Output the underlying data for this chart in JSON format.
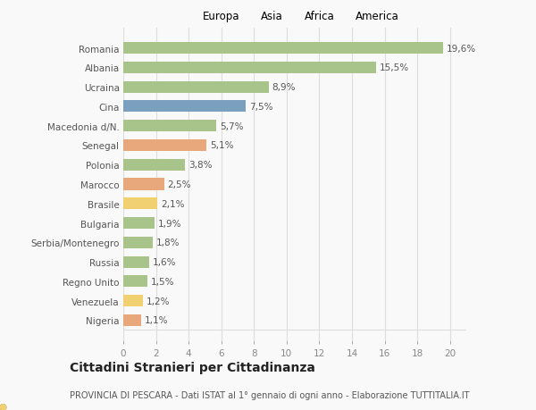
{
  "categories": [
    "Nigeria",
    "Venezuela",
    "Regno Unito",
    "Russia",
    "Serbia/Montenegro",
    "Bulgaria",
    "Brasile",
    "Marocco",
    "Polonia",
    "Senegal",
    "Macedonia d/N.",
    "Cina",
    "Ucraina",
    "Albania",
    "Romania"
  ],
  "values": [
    1.1,
    1.2,
    1.5,
    1.6,
    1.8,
    1.9,
    2.1,
    2.5,
    3.8,
    5.1,
    5.7,
    7.5,
    8.9,
    15.5,
    19.6
  ],
  "labels": [
    "1,1%",
    "1,2%",
    "1,5%",
    "1,6%",
    "1,8%",
    "1,9%",
    "2,1%",
    "2,5%",
    "3,8%",
    "5,1%",
    "5,7%",
    "7,5%",
    "8,9%",
    "15,5%",
    "19,6%"
  ],
  "continents": [
    "Africa",
    "America",
    "Europa",
    "Europa",
    "Europa",
    "Europa",
    "America",
    "Africa",
    "Europa",
    "Africa",
    "Europa",
    "Asia",
    "Europa",
    "Europa",
    "Europa"
  ],
  "colors": {
    "Europa": "#a8c48a",
    "Asia": "#7b9fbe",
    "Africa": "#e8a87c",
    "America": "#f0d070"
  },
  "legend_order": [
    "Europa",
    "Asia",
    "Africa",
    "America"
  ],
  "xlim": [
    0,
    21
  ],
  "xticks": [
    0,
    2,
    4,
    6,
    8,
    10,
    12,
    14,
    16,
    18,
    20
  ],
  "title": "Cittadini Stranieri per Cittadinanza",
  "subtitle": "PROVINCIA DI PESCARA - Dati ISTAT al 1° gennaio di ogni anno - Elaborazione TUTTITALIA.IT",
  "background_color": "#f9f9f9",
  "grid_color": "#dddddd",
  "bar_height": 0.6,
  "label_fontsize": 7.5,
  "ytick_fontsize": 7.5,
  "xtick_fontsize": 7.5,
  "title_fontsize": 10,
  "subtitle_fontsize": 7,
  "legend_fontsize": 8.5
}
